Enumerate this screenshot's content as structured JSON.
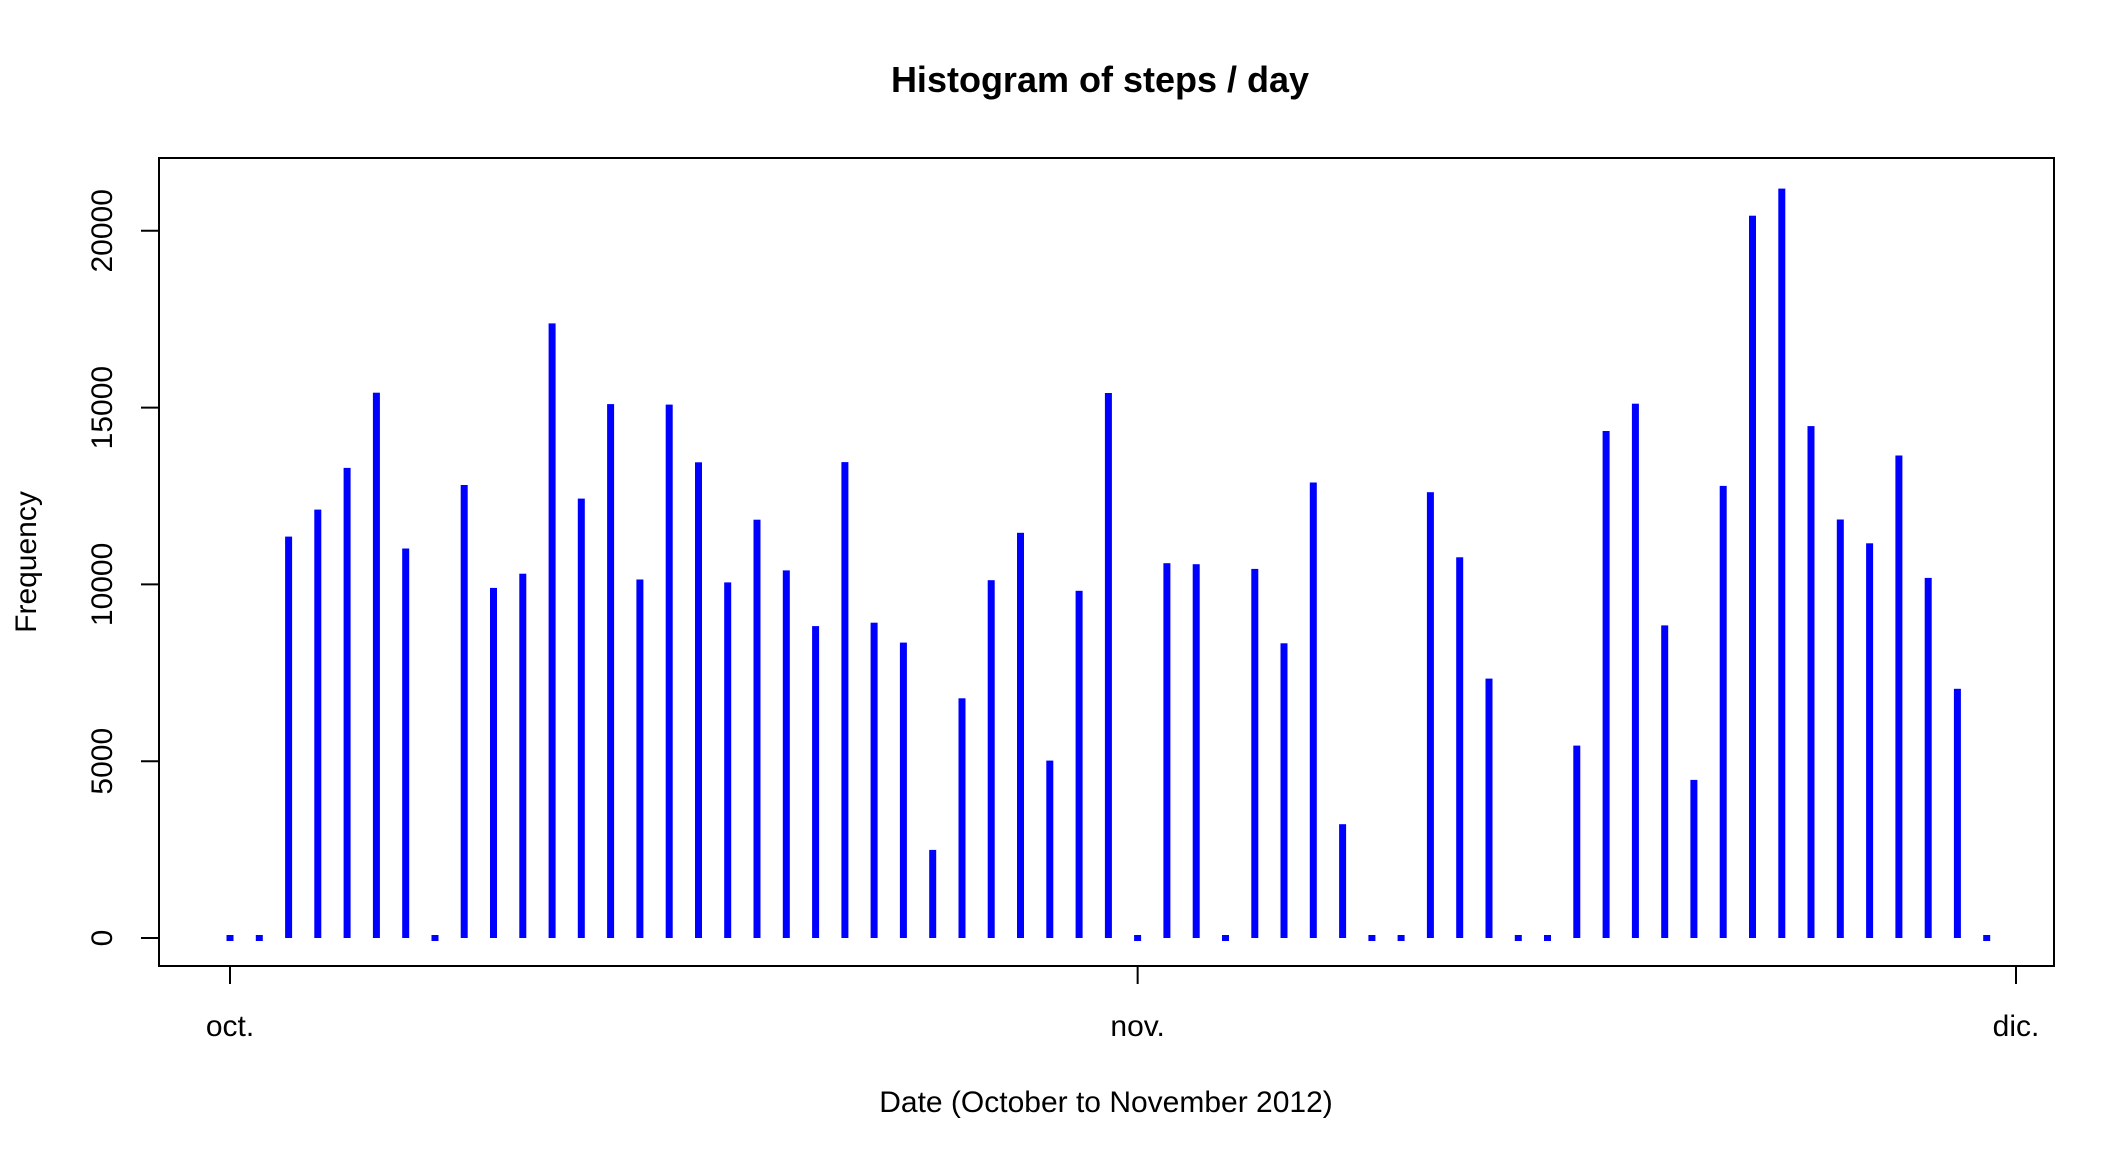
{
  "chart_data": {
    "type": "bar",
    "title": "Histogram of steps / day",
    "xlabel": "Date (October to November 2012)",
    "ylabel": "Frequency",
    "x_tick_labels": [
      "oct.",
      "nov.",
      "dic."
    ],
    "x_tick_dates": [
      "2012-10-01",
      "2012-11-01",
      "2012-12-01"
    ],
    "xlim": [
      "2012-10-01",
      "2012-12-01"
    ],
    "ylim": [
      0,
      22000
    ],
    "y_ticks": [
      0,
      5000,
      10000,
      15000,
      20000
    ],
    "grid": false,
    "legend": "none",
    "bar_color": "#0000ff",
    "x": [
      "2012-10-01",
      "2012-10-02",
      "2012-10-03",
      "2012-10-04",
      "2012-10-05",
      "2012-10-06",
      "2012-10-07",
      "2012-10-08",
      "2012-10-09",
      "2012-10-10",
      "2012-10-11",
      "2012-10-12",
      "2012-10-13",
      "2012-10-14",
      "2012-10-15",
      "2012-10-16",
      "2012-10-17",
      "2012-10-18",
      "2012-10-19",
      "2012-10-20",
      "2012-10-21",
      "2012-10-22",
      "2012-10-23",
      "2012-10-24",
      "2012-10-25",
      "2012-10-26",
      "2012-10-27",
      "2012-10-28",
      "2012-10-29",
      "2012-10-30",
      "2012-10-31",
      "2012-11-01",
      "2012-11-02",
      "2012-11-03",
      "2012-11-04",
      "2012-11-05",
      "2012-11-06",
      "2012-11-07",
      "2012-11-08",
      "2012-11-09",
      "2012-11-10",
      "2012-11-11",
      "2012-11-12",
      "2012-11-13",
      "2012-11-14",
      "2012-11-15",
      "2012-11-16",
      "2012-11-17",
      "2012-11-18",
      "2012-11-19",
      "2012-11-20",
      "2012-11-21",
      "2012-11-22",
      "2012-11-23",
      "2012-11-24",
      "2012-11-25",
      "2012-11-26",
      "2012-11-27",
      "2012-11-28",
      "2012-11-29",
      "2012-11-30"
    ],
    "values": [
      0,
      126,
      11352,
      12116,
      13294,
      15420,
      11015,
      0,
      12811,
      9900,
      10304,
      17382,
      12426,
      15098,
      10139,
      15084,
      13452,
      10056,
      11829,
      10395,
      8821,
      13460,
      8918,
      8355,
      2492,
      6778,
      10119,
      11458,
      5018,
      9819,
      15414,
      0,
      10600,
      10571,
      0,
      10439,
      8334,
      12883,
      3219,
      0,
      0,
      12608,
      10765,
      7336,
      0,
      41,
      5441,
      14339,
      15110,
      8841,
      4472,
      12787,
      20427,
      21194,
      14478,
      11834,
      11162,
      13646,
      10183,
      7047,
      0
    ]
  }
}
